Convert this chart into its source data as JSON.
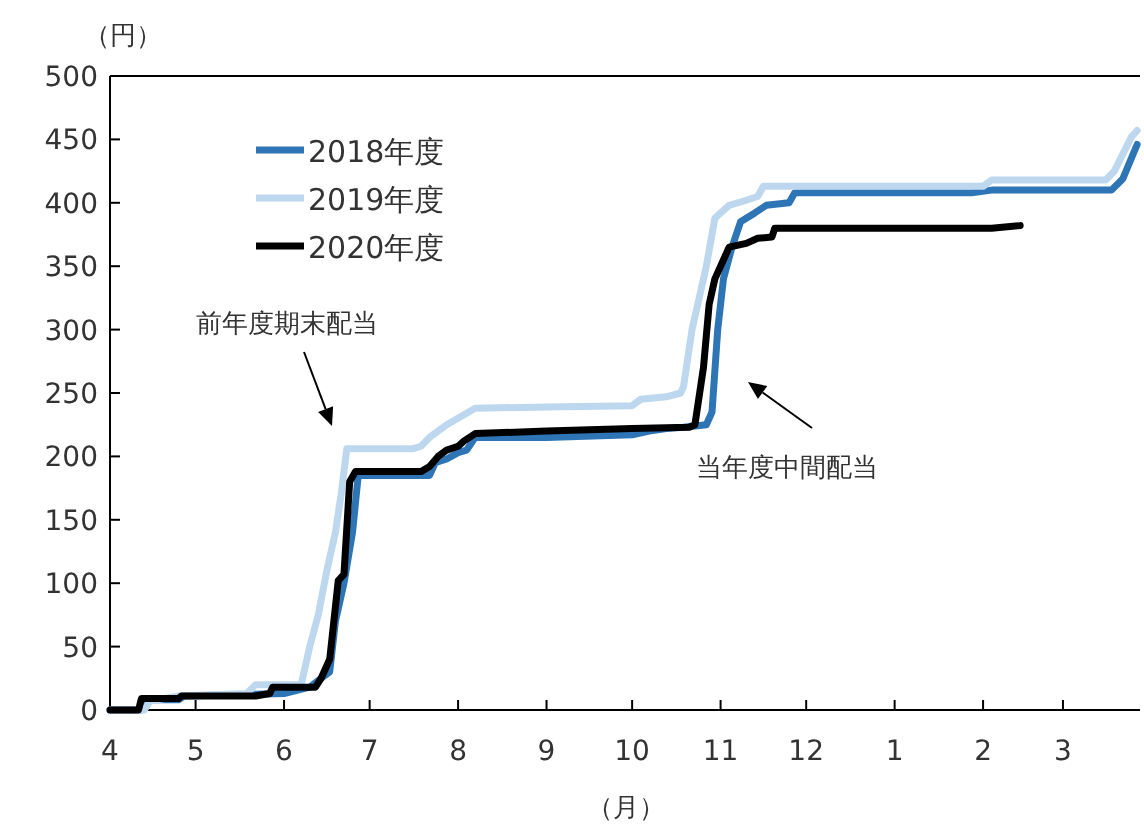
{
  "chart_data": {
    "type": "line",
    "ylabel": "（円）",
    "xlabel": "（月）",
    "xlim": [
      "2020-04-01",
      "2021-03-28"
    ],
    "xticks": [
      {
        "value": "2020-04-01",
        "label": "4"
      },
      {
        "value": "2020-05-01",
        "label": "5"
      },
      {
        "value": "2020-06-01",
        "label": "6"
      },
      {
        "value": "2020-07-01",
        "label": "7"
      },
      {
        "value": "2020-08-01",
        "label": "8"
      },
      {
        "value": "2020-09-01",
        "label": "9"
      },
      {
        "value": "2020-10-01",
        "label": "10"
      },
      {
        "value": "2020-11-01",
        "label": "11"
      },
      {
        "value": "2020-12-01",
        "label": "12"
      },
      {
        "value": "2021-01-01",
        "label": "1"
      },
      {
        "value": "2021-02-01",
        "label": "2"
      },
      {
        "value": "2021-03-01",
        "label": "3"
      }
    ],
    "ylim": [
      0,
      500
    ],
    "yticks": [
      0,
      50,
      100,
      150,
      200,
      250,
      300,
      350,
      400,
      450,
      500
    ],
    "legend": "top left",
    "grid": false,
    "line_style": "solid",
    "marker": "none",
    "series": [
      {
        "name": "2018年度",
        "color": "#2e75b6",
        "x": [
          "2020-04-01",
          "2020-04-12",
          "2020-04-14",
          "2020-04-25",
          "2020-04-27",
          "2020-06-01",
          "2020-06-10",
          "2020-06-14",
          "2020-06-17",
          "2020-06-19",
          "2020-06-22",
          "2020-06-25",
          "2020-06-27",
          "2020-07-22",
          "2020-07-24",
          "2020-07-28",
          "2020-08-01",
          "2020-08-04",
          "2020-08-07",
          "2020-09-01",
          "2020-10-01",
          "2020-10-07",
          "2020-10-13",
          "2020-10-19",
          "2020-10-27",
          "2020-10-29",
          "2020-10-31",
          "2020-11-02",
          "2020-11-05",
          "2020-11-08",
          "2020-11-13",
          "2020-11-17",
          "2020-11-25",
          "2020-11-27",
          "2021-01-28",
          "2021-02-04",
          "2021-03-18",
          "2021-03-22",
          "2021-03-27"
        ],
        "values": [
          0,
          0,
          8,
          8,
          11,
          13,
          18,
          25,
          30,
          70,
          100,
          140,
          185,
          185,
          195,
          198,
          203,
          205,
          215,
          215,
          217,
          220,
          222,
          223,
          225,
          235,
          300,
          340,
          365,
          385,
          392,
          398,
          400,
          408,
          408,
          410,
          410,
          419,
          446
        ]
      },
      {
        "name": "2019年度",
        "color": "#bdd7ee",
        "x": [
          "2020-04-01",
          "2020-04-13",
          "2020-04-15",
          "2020-04-25",
          "2020-05-19",
          "2020-05-22",
          "2020-06-07",
          "2020-06-10",
          "2020-06-13",
          "2020-06-16",
          "2020-06-19",
          "2020-06-21",
          "2020-06-23",
          "2020-07-16",
          "2020-07-19",
          "2020-07-22",
          "2020-07-28",
          "2020-08-07",
          "2020-09-01",
          "2020-10-01",
          "2020-10-04",
          "2020-10-13",
          "2020-10-18",
          "2020-10-19",
          "2020-10-22",
          "2020-10-25",
          "2020-10-27",
          "2020-10-30",
          "2020-11-04",
          "2020-11-10",
          "2020-11-14",
          "2020-11-16",
          "2021-02-01",
          "2021-02-04",
          "2021-03-16",
          "2021-03-19",
          "2021-03-25",
          "2021-03-27"
        ],
        "values": [
          0,
          0,
          7,
          11,
          13,
          20,
          20,
          50,
          75,
          110,
          140,
          170,
          206,
          206,
          208,
          215,
          225,
          238,
          239,
          240,
          245,
          247,
          250,
          255,
          300,
          330,
          350,
          388,
          398,
          402,
          405,
          413,
          413,
          418,
          418,
          425,
          452,
          457
        ]
      },
      {
        "name": "2020年度",
        "color": "#000000",
        "x": [
          "2020-04-01",
          "2020-04-11",
          "2020-04-12",
          "2020-04-25",
          "2020-04-26",
          "2020-05-22",
          "2020-05-27",
          "2020-05-28",
          "2020-06-12",
          "2020-06-14",
          "2020-06-17",
          "2020-06-20",
          "2020-06-22",
          "2020-06-24",
          "2020-06-26",
          "2020-07-19",
          "2020-07-22",
          "2020-07-25",
          "2020-07-28",
          "2020-08-01",
          "2020-08-03",
          "2020-08-07",
          "2020-09-01",
          "2020-10-01",
          "2020-10-21",
          "2020-10-23",
          "2020-10-26",
          "2020-10-28",
          "2020-10-30",
          "2020-11-01",
          "2020-11-04",
          "2020-11-10",
          "2020-11-14",
          "2020-11-19",
          "2020-11-20",
          "2021-02-04",
          "2021-02-14"
        ],
        "values": [
          0,
          0,
          9,
          9,
          11,
          11,
          13,
          18,
          18,
          25,
          40,
          102,
          107,
          180,
          188,
          188,
          192,
          200,
          205,
          208,
          212,
          218,
          220,
          222,
          223,
          225,
          270,
          320,
          340,
          350,
          365,
          368,
          372,
          373,
          380,
          380,
          382
        ]
      }
    ],
    "annotations": [
      "前年度期末配当",
      "当年度中間配当"
    ]
  }
}
